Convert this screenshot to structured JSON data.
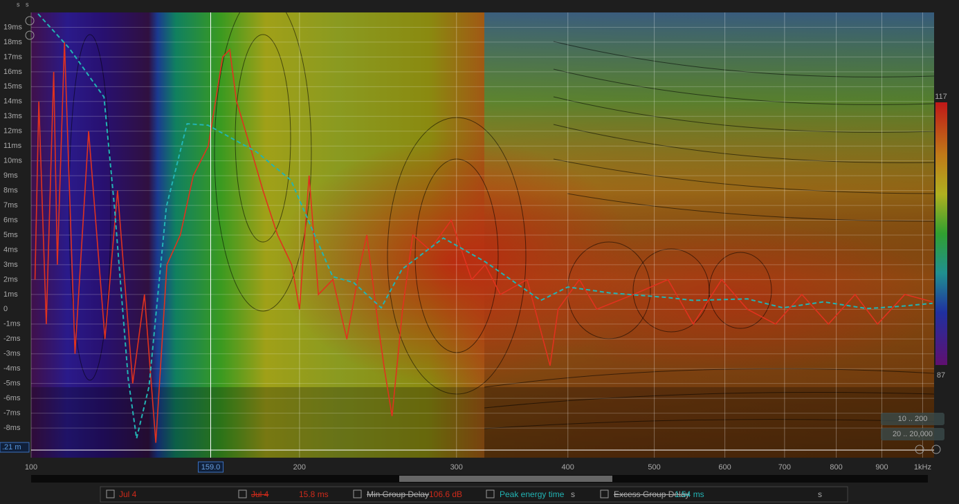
{
  "chart_data": {
    "type": "line",
    "xlog": true,
    "xlim": [
      100,
      1030
    ],
    "ylim": [
      -10,
      20
    ],
    "xticks": [
      100,
      200,
      300,
      400,
      500,
      600,
      700,
      800,
      900,
      {
        "value": 1000,
        "label": "1kHz"
      }
    ],
    "yticks": [
      {
        "value": 19,
        "label": "19ms"
      },
      {
        "value": 18,
        "label": "18ms"
      },
      {
        "value": 17,
        "label": "17ms"
      },
      {
        "value": 16,
        "label": "16ms"
      },
      {
        "value": 15,
        "label": "15ms"
      },
      {
        "value": 14,
        "label": "14ms"
      },
      {
        "value": 13,
        "label": "13ms"
      },
      {
        "value": 12,
        "label": "12ms"
      },
      {
        "value": 11,
        "label": "11ms"
      },
      {
        "value": 10,
        "label": "10ms"
      },
      {
        "value": 9,
        "label": "9ms"
      },
      {
        "value": 8,
        "label": "8ms"
      },
      {
        "value": 7,
        "label": "7ms"
      },
      {
        "value": 6,
        "label": "6ms"
      },
      {
        "value": 5,
        "label": "5ms"
      },
      {
        "value": 4,
        "label": "4ms"
      },
      {
        "value": 3,
        "label": "3ms"
      },
      {
        "value": 2,
        "label": "2ms"
      },
      {
        "value": 1,
        "label": "1ms"
      },
      0,
      {
        "value": -1,
        "label": "-1ms"
      },
      {
        "value": -2,
        "label": "-2ms"
      },
      {
        "value": -3,
        "label": "-3ms"
      },
      {
        "value": -4,
        "label": "-4ms"
      },
      {
        "value": -5,
        "label": "-5ms"
      },
      {
        "value": -6,
        "label": "-6ms"
      },
      {
        "value": -7,
        "label": "-7ms"
      },
      {
        "value": -8,
        "label": "-8ms"
      }
    ],
    "grid": true,
    "zlim": [
      87,
      117
    ],
    "cursor_x": {
      "value": 159,
      "label": "159.0"
    },
    "cursor_y_label": ".21 m",
    "series": [
      {
        "name": "Jul 4",
        "color": "#e0321e",
        "dashed": false,
        "x": [
          101,
          102,
          104,
          106,
          107,
          109,
          112,
          116,
          121,
          125,
          130,
          134,
          138,
          142,
          147,
          152,
          158,
          164,
          167,
          170,
          176,
          182,
          189,
          196,
          200,
          205,
          210,
          218,
          226,
          234,
          238,
          245,
          249,
          254,
          261,
          268,
          280,
          296,
          312,
          323,
          336,
          360,
          382,
          390,
          412,
          431,
          474,
          518,
          553,
          595,
          636,
          684,
          732,
          784,
          840,
          890,
          955,
          1026
        ],
        "values": [
          2,
          14,
          -1,
          16,
          3,
          18,
          -3,
          12,
          -2,
          8,
          -5,
          1,
          -9,
          3,
          5,
          9,
          11,
          17,
          17.5,
          14,
          11,
          8,
          5,
          3,
          0,
          9,
          1,
          2,
          -2,
          3,
          5,
          -1,
          -4,
          -7.2,
          0,
          5,
          4,
          6,
          2,
          3,
          1,
          2,
          -3.8,
          0,
          2,
          0,
          1,
          2,
          -1,
          2,
          0,
          -1,
          1,
          -1,
          1,
          -1,
          1,
          0.5
        ]
      },
      {
        "name": "Peak energy time",
        "color": "#22b4b4",
        "dashed": true,
        "x": [
          101.8,
          110.3,
          120.7,
          124,
          128.5,
          131.3,
          135.6,
          141.8,
          149.6,
          157.9,
          179,
          195.6,
          217.9,
          230,
          247,
          260.6,
          290,
          323,
          373,
          400,
          446,
          516,
          553,
          636,
          697,
          774,
          866,
          945,
          1026
        ],
        "values": [
          19.9,
          17.6,
          14.3,
          6.9,
          -4.7,
          -8.7,
          -5.2,
          6.9,
          12.5,
          12.4,
          10.6,
          8.7,
          2.2,
          1.8,
          0.1,
          2.7,
          4.8,
          3.2,
          0.6,
          1.5,
          1.1,
          0.8,
          0.6,
          0.7,
          0.1,
          0.5,
          0.05,
          0.2,
          0.4
        ]
      }
    ]
  },
  "controls": {
    "top_labels": [
      "s",
      "s"
    ],
    "range_buttons": [
      "10 .. 200",
      "20 .. 20,000"
    ],
    "legend_bar": {
      "jul4_second": "Jul 4",
      "delay": "15.8 ms",
      "min_group_delay": "Min Group Delay",
      "level": "106.6 dB",
      "unit_s1": "s",
      "excess_group_delay": "Excess Group Delay",
      "excess_value": "1.54 ms",
      "unit_s2": "s"
    }
  }
}
